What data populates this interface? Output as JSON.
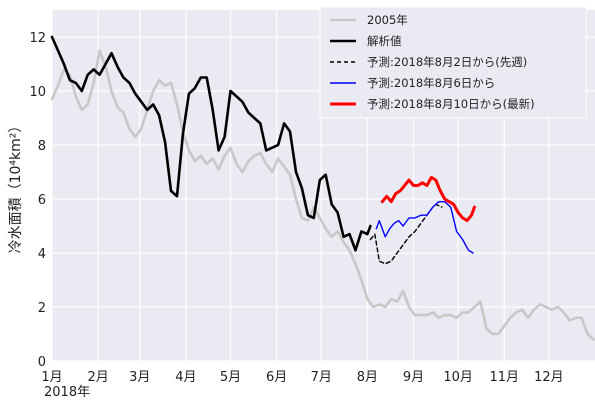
{
  "chart_data": {
    "type": "line",
    "ylabel": "冷水面積（10⁴km²）",
    "year_label": "2018年",
    "ylim": [
      0,
      13
    ],
    "xlim": [
      0,
      365
    ],
    "yticks": [
      0,
      2,
      4,
      6,
      8,
      10,
      12
    ],
    "xticks": [
      {
        "day": 0,
        "label": "1月"
      },
      {
        "day": 31,
        "label": "2月"
      },
      {
        "day": 59,
        "label": "3月"
      },
      {
        "day": 90,
        "label": "4月"
      },
      {
        "day": 120,
        "label": "5月"
      },
      {
        "day": 151,
        "label": "6月"
      },
      {
        "day": 181,
        "label": "7月"
      },
      {
        "day": 212,
        "label": "8月"
      },
      {
        "day": 243,
        "label": "9月"
      },
      {
        "day": 273,
        "label": "10月"
      },
      {
        "day": 304,
        "label": "11月"
      },
      {
        "day": 334,
        "label": "12月"
      }
    ],
    "grid": true,
    "legend_position": "top-right",
    "series": [
      {
        "name": "2005年",
        "color": "#c8c8c8",
        "style": "solid",
        "points": [
          [
            0,
            9.7
          ],
          [
            4,
            10.2
          ],
          [
            8,
            10.8
          ],
          [
            12,
            10.6
          ],
          [
            16,
            9.8
          ],
          [
            20,
            9.3
          ],
          [
            24,
            9.5
          ],
          [
            28,
            10.3
          ],
          [
            32,
            11.5
          ],
          [
            36,
            10.9
          ],
          [
            40,
            10.0
          ],
          [
            44,
            9.4
          ],
          [
            48,
            9.2
          ],
          [
            52,
            8.6
          ],
          [
            56,
            8.3
          ],
          [
            60,
            8.6
          ],
          [
            64,
            9.3
          ],
          [
            68,
            10.0
          ],
          [
            72,
            10.4
          ],
          [
            76,
            10.2
          ],
          [
            80,
            10.3
          ],
          [
            84,
            9.5
          ],
          [
            88,
            8.5
          ],
          [
            92,
            7.8
          ],
          [
            96,
            7.4
          ],
          [
            100,
            7.6
          ],
          [
            104,
            7.3
          ],
          [
            108,
            7.5
          ],
          [
            112,
            7.1
          ],
          [
            116,
            7.6
          ],
          [
            120,
            7.9
          ],
          [
            124,
            7.3
          ],
          [
            128,
            7.0
          ],
          [
            132,
            7.4
          ],
          [
            136,
            7.6
          ],
          [
            140,
            7.7
          ],
          [
            144,
            7.3
          ],
          [
            148,
            7.0
          ],
          [
            152,
            7.5
          ],
          [
            156,
            7.2
          ],
          [
            160,
            6.9
          ],
          [
            164,
            6.0
          ],
          [
            168,
            5.3
          ],
          [
            172,
            5.2
          ],
          [
            176,
            5.7
          ],
          [
            180,
            5.3
          ],
          [
            184,
            4.9
          ],
          [
            188,
            4.6
          ],
          [
            192,
            4.8
          ],
          [
            196,
            4.4
          ],
          [
            200,
            4.1
          ],
          [
            204,
            3.6
          ],
          [
            208,
            3.0
          ],
          [
            212,
            2.3
          ],
          [
            216,
            2.0
          ],
          [
            220,
            2.1
          ],
          [
            224,
            2.0
          ],
          [
            228,
            2.3
          ],
          [
            232,
            2.2
          ],
          [
            236,
            2.6
          ],
          [
            240,
            2.0
          ],
          [
            244,
            1.7
          ],
          [
            248,
            1.7
          ],
          [
            252,
            1.7
          ],
          [
            256,
            1.8
          ],
          [
            260,
            1.6
          ],
          [
            264,
            1.7
          ],
          [
            268,
            1.7
          ],
          [
            272,
            1.6
          ],
          [
            276,
            1.8
          ],
          [
            280,
            1.8
          ],
          [
            284,
            2.0
          ],
          [
            288,
            2.2
          ],
          [
            292,
            1.2
          ],
          [
            296,
            1.0
          ],
          [
            300,
            1.0
          ],
          [
            304,
            1.3
          ],
          [
            308,
            1.6
          ],
          [
            312,
            1.8
          ],
          [
            316,
            1.9
          ],
          [
            320,
            1.6
          ],
          [
            324,
            1.9
          ],
          [
            328,
            2.1
          ],
          [
            332,
            2.0
          ],
          [
            336,
            1.9
          ],
          [
            340,
            2.0
          ],
          [
            344,
            1.8
          ],
          [
            348,
            1.5
          ],
          [
            352,
            1.6
          ],
          [
            356,
            1.6
          ],
          [
            360,
            1.0
          ],
          [
            364,
            0.8
          ]
        ]
      },
      {
        "name": "解析値",
        "color": "#000000",
        "style": "solid",
        "points": [
          [
            0,
            12.0
          ],
          [
            4,
            11.5
          ],
          [
            8,
            11.0
          ],
          [
            12,
            10.4
          ],
          [
            16,
            10.3
          ],
          [
            20,
            10.0
          ],
          [
            24,
            10.6
          ],
          [
            28,
            10.8
          ],
          [
            32,
            10.6
          ],
          [
            36,
            11.0
          ],
          [
            40,
            11.4
          ],
          [
            44,
            10.9
          ],
          [
            48,
            10.5
          ],
          [
            52,
            10.3
          ],
          [
            56,
            9.9
          ],
          [
            60,
            9.6
          ],
          [
            64,
            9.3
          ],
          [
            68,
            9.5
          ],
          [
            72,
            9.1
          ],
          [
            76,
            8.1
          ],
          [
            80,
            6.3
          ],
          [
            84,
            6.1
          ],
          [
            88,
            8.4
          ],
          [
            92,
            9.9
          ],
          [
            96,
            10.1
          ],
          [
            100,
            10.5
          ],
          [
            104,
            10.5
          ],
          [
            108,
            9.3
          ],
          [
            112,
            7.8
          ],
          [
            116,
            8.3
          ],
          [
            120,
            10.0
          ],
          [
            124,
            9.8
          ],
          [
            128,
            9.6
          ],
          [
            132,
            9.2
          ],
          [
            136,
            9.0
          ],
          [
            140,
            8.8
          ],
          [
            144,
            7.8
          ],
          [
            148,
            7.9
          ],
          [
            152,
            8.0
          ],
          [
            156,
            8.8
          ],
          [
            160,
            8.5
          ],
          [
            164,
            7.0
          ],
          [
            168,
            6.4
          ],
          [
            172,
            5.4
          ],
          [
            176,
            5.3
          ],
          [
            180,
            6.7
          ],
          [
            184,
            6.9
          ],
          [
            188,
            5.8
          ],
          [
            192,
            5.5
          ],
          [
            196,
            4.6
          ],
          [
            200,
            4.7
          ],
          [
            204,
            4.1
          ],
          [
            208,
            4.8
          ],
          [
            212,
            4.7
          ],
          [
            214,
            5.0
          ]
        ]
      },
      {
        "name": "予測:2018年8月2日から(先週)",
        "color": "#000000",
        "style": "dashed",
        "points": [
          [
            214,
            4.5
          ],
          [
            217,
            4.7
          ],
          [
            220,
            3.7
          ],
          [
            224,
            3.6
          ],
          [
            228,
            3.7
          ],
          [
            232,
            4.0
          ],
          [
            236,
            4.3
          ],
          [
            240,
            4.6
          ],
          [
            244,
            4.8
          ],
          [
            248,
            5.1
          ],
          [
            252,
            5.4
          ],
          [
            256,
            5.7
          ],
          [
            258,
            5.8
          ],
          [
            262,
            5.7
          ]
        ]
      },
      {
        "name": "予測:2018年8月6日から",
        "color": "#0000ff",
        "style": "solid",
        "points": [
          [
            218,
            4.9
          ],
          [
            220,
            5.2
          ],
          [
            224,
            4.6
          ],
          [
            227,
            4.9
          ],
          [
            230,
            5.1
          ],
          [
            233,
            5.2
          ],
          [
            236,
            5.0
          ],
          [
            240,
            5.3
          ],
          [
            244,
            5.3
          ],
          [
            248,
            5.4
          ],
          [
            252,
            5.4
          ],
          [
            256,
            5.7
          ],
          [
            260,
            5.9
          ],
          [
            264,
            5.9
          ],
          [
            268,
            5.7
          ],
          [
            272,
            4.8
          ],
          [
            276,
            4.5
          ],
          [
            280,
            4.1
          ],
          [
            283,
            4.0
          ]
        ]
      },
      {
        "name": "予測:2018年8月10日から(最新)",
        "color": "#ff0000",
        "style": "solid",
        "points": [
          [
            222,
            5.9
          ],
          [
            225,
            6.1
          ],
          [
            228,
            5.9
          ],
          [
            231,
            6.2
          ],
          [
            234,
            6.3
          ],
          [
            237,
            6.5
          ],
          [
            240,
            6.7
          ],
          [
            243,
            6.5
          ],
          [
            246,
            6.5
          ],
          [
            249,
            6.6
          ],
          [
            252,
            6.5
          ],
          [
            255,
            6.8
          ],
          [
            258,
            6.7
          ],
          [
            261,
            6.3
          ],
          [
            264,
            6.0
          ],
          [
            267,
            5.9
          ],
          [
            270,
            5.8
          ],
          [
            273,
            5.5
          ],
          [
            276,
            5.3
          ],
          [
            279,
            5.2
          ],
          [
            282,
            5.4
          ],
          [
            284,
            5.7
          ]
        ]
      }
    ]
  }
}
